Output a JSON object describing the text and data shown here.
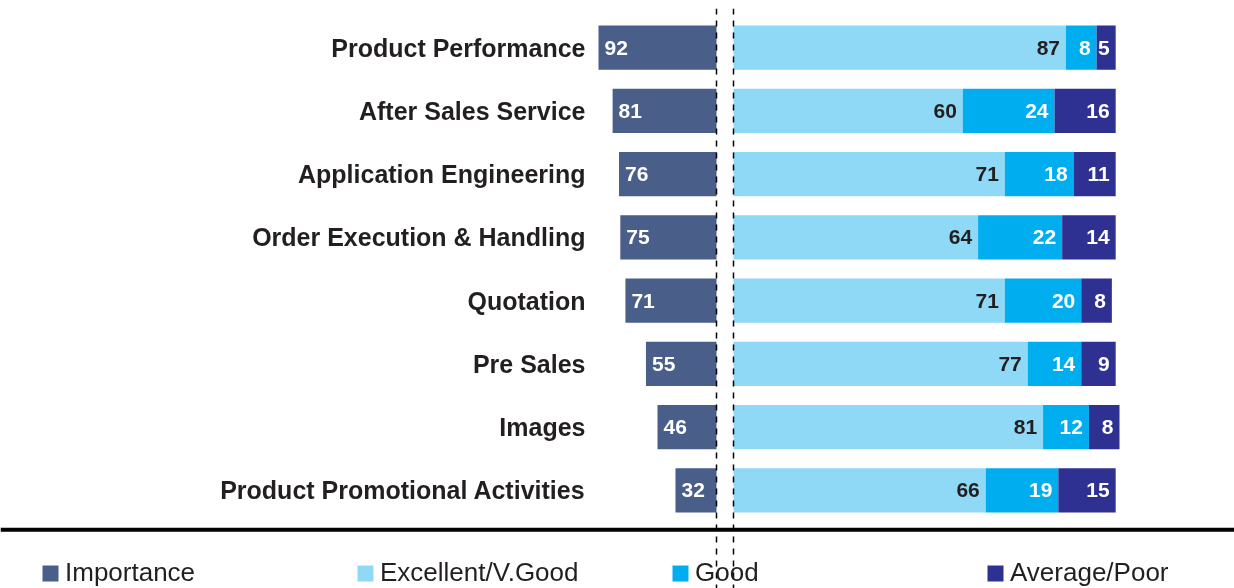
{
  "chart_data": [
    {
      "type": "bar",
      "orientation": "horizontal",
      "categories": [
        "Product Performance",
        "After Sales Service",
        "Application Engineering",
        "Order Execution & Handling",
        "Quotation",
        "Pre Sales",
        "Images",
        "Product Promotional Activities"
      ],
      "series": [
        {
          "name": "Importance",
          "color": "#495e89",
          "values": [
            92,
            81,
            76,
            75,
            71,
            55,
            46,
            32
          ]
        }
      ],
      "tick_labels": "y",
      "data_labels": true,
      "legend": "bottom",
      "ref_lines": [
        {
          "axis": "x",
          "value": 0,
          "color": "#000000",
          "line_style": "dashed"
        }
      ]
    },
    {
      "type": "bar",
      "orientation": "horizontal",
      "stacked": true,
      "categories": [
        null,
        null,
        null,
        null,
        null,
        null,
        null,
        null
      ],
      "series": [
        {
          "name": "Excellent/V.Good",
          "color": "#8fd8f6",
          "values": [
            87,
            60,
            71,
            64,
            71,
            77,
            81,
            66
          ]
        },
        {
          "name": "Good",
          "color": "#00aeef",
          "values": [
            8,
            24,
            18,
            22,
            20,
            14,
            12,
            19
          ]
        },
        {
          "name": "Average/Poor",
          "color": "#2e3192",
          "values": [
            5,
            16,
            11,
            14,
            8,
            9,
            8,
            15
          ]
        }
      ],
      "tick_labels": false,
      "data_labels": true,
      "legend": "bottom",
      "ref_lines": [
        {
          "axis": "x",
          "value": 0,
          "color": "#000000",
          "line_style": "dashed"
        }
      ]
    }
  ]
}
